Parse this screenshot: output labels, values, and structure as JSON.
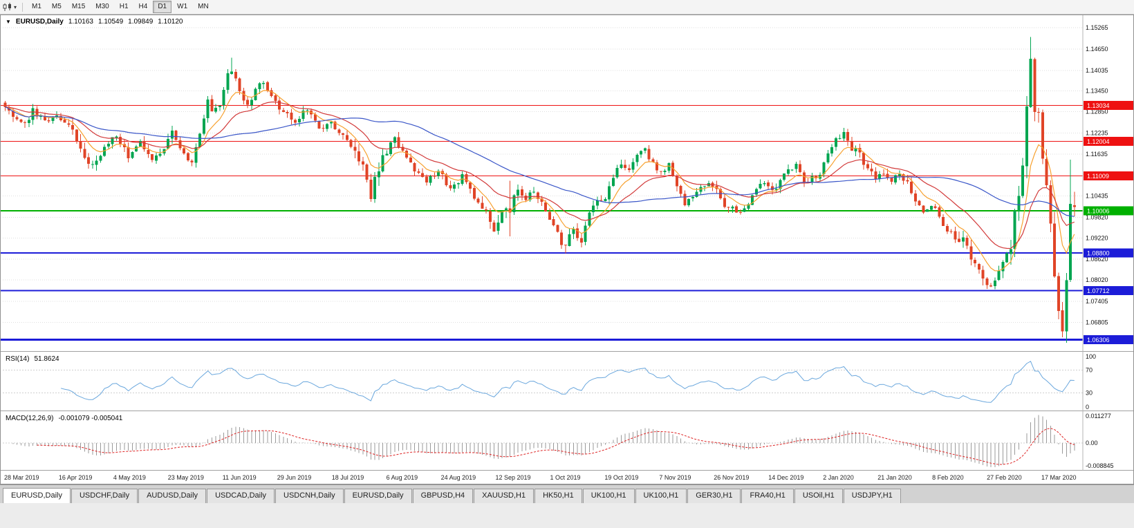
{
  "icons": {
    "collapse_arrow": "▼",
    "dropdown_caret": "▾"
  },
  "toolbar": {
    "timeframes": [
      "M1",
      "M5",
      "M15",
      "M30",
      "H1",
      "H4",
      "D1",
      "W1",
      "MN"
    ],
    "active_timeframe": "D1"
  },
  "chart": {
    "title_symbol": "EURUSD,Daily",
    "ohlc": {
      "open": "1.10163",
      "high": "1.10549",
      "low": "1.09849",
      "close": "1.10120"
    }
  },
  "indicators": {
    "rsi": {
      "label": "RSI(14)",
      "value": "51.8624",
      "scale": [
        "100",
        "70",
        "30",
        "0"
      ],
      "levels": [
        70,
        30
      ]
    },
    "macd": {
      "label": "MACD(12,26,9)",
      "values": "-0.001079 -0.005041",
      "scale": [
        "0.011277",
        "0.00",
        "-0.008845"
      ]
    }
  },
  "price_scale": {
    "labels": [
      "1.15265",
      "1.14650",
      "1.14035",
      "1.13450",
      "1.12850",
      "1.12235",
      "1.11635",
      "1.10435",
      "1.09820",
      "1.09220",
      "1.08620",
      "1.08020",
      "1.07405",
      "1.06805"
    ]
  },
  "x_axis": {
    "dates": [
      "28 Mar 2019",
      "16 Apr 2019",
      "4 May 2019",
      "23 May 2019",
      "11 Jun 2019",
      "29 Jun 2019",
      "18 Jul 2019",
      "6 Aug 2019",
      "24 Aug 2019",
      "12 Sep 2019",
      "1 Oct 2019",
      "19 Oct 2019",
      "7 Nov 2019",
      "26 Nov 2019",
      "14 Dec 2019",
      "2 Jan 2020",
      "21 Jan 2020",
      "8 Feb 2020",
      "27 Feb 2020",
      "17 Mar 2020"
    ]
  },
  "tabs": [
    {
      "label": "EURUSD,Daily",
      "active": true
    },
    {
      "label": "USDCHF,Daily",
      "active": false
    },
    {
      "label": "AUDUSD,Daily",
      "active": false
    },
    {
      "label": "USDCAD,Daily",
      "active": false
    },
    {
      "label": "USDCNH,Daily",
      "active": false
    },
    {
      "label": "EURUSD,Daily",
      "active": false
    },
    {
      "label": "GBPUSD,H4",
      "active": false
    },
    {
      "label": "XAUUSD,H1",
      "active": false
    },
    {
      "label": "HK50,H1",
      "active": false
    },
    {
      "label": "UK100,H1",
      "active": false
    },
    {
      "label": "UK100,H1",
      "active": false
    },
    {
      "label": "GER30,H1",
      "active": false
    },
    {
      "label": "FRA40,H1",
      "active": false
    },
    {
      "label": "USOil,H1",
      "active": false
    },
    {
      "label": "USDJPY,H1",
      "active": false
    }
  ],
  "chart_data": {
    "type": "candlestick",
    "title": "EURUSD,Daily",
    "symbol": "EURUSD",
    "timeframe": "Daily",
    "num_candles": 270,
    "seed": 20200403,
    "price_axis": {
      "min": 1.06,
      "max": 1.156
    },
    "up_color": "#00a550",
    "down_color": "#e04427",
    "levels": [
      {
        "price": 1.13034,
        "label": "1.13034",
        "color": "#ee1111",
        "width": 1
      },
      {
        "price": 1.12004,
        "label": "1.12004",
        "color": "#ee1111",
        "width": 1
      },
      {
        "price": 1.11009,
        "label": "1.11009",
        "color": "#ee1111",
        "width": 1
      },
      {
        "price": 1.10006,
        "label": "1.10006",
        "color": "#00b000",
        "width": 2
      },
      {
        "price": 1.088,
        "label": "1.08800",
        "color": "#1c1cd8",
        "width": 2
      },
      {
        "price": 1.07712,
        "label": "1.07712",
        "color": "#1c1cd8",
        "width": 2
      },
      {
        "price": 1.06306,
        "label": "1.06306",
        "color": "#1c1cd8",
        "width": 3
      }
    ],
    "moving_averages": [
      {
        "type": "ema",
        "period": 8,
        "color": "#f7a12f"
      },
      {
        "type": "ema",
        "period": 21,
        "color": "#d23a3a"
      },
      {
        "type": "sma",
        "period": 50,
        "color": "#3a56c8"
      }
    ],
    "vol_zones": [
      [
        17,
        23,
        1.5
      ],
      [
        88,
        96,
        1.8
      ],
      [
        120,
        130,
        1.5
      ],
      [
        139,
        143,
        1.5
      ],
      [
        239,
        252,
        1.4
      ],
      [
        253,
        268,
        2.4
      ]
    ],
    "anchors": [
      [
        0,
        1.1305
      ],
      [
        2,
        1.1272
      ],
      [
        5,
        1.1248
      ],
      [
        7,
        1.1288
      ],
      [
        10,
        1.1262
      ],
      [
        14,
        1.1268
      ],
      [
        17,
        1.123
      ],
      [
        20,
        1.1152
      ],
      [
        22,
        1.1122
      ],
      [
        25,
        1.1188
      ],
      [
        28,
        1.1215
      ],
      [
        31,
        1.116
      ],
      [
        34,
        1.1205
      ],
      [
        37,
        1.114
      ],
      [
        40,
        1.1178
      ],
      [
        42,
        1.1222
      ],
      [
        45,
        1.116
      ],
      [
        47,
        1.1132
      ],
      [
        49,
        1.123
      ],
      [
        51,
        1.1318
      ],
      [
        52,
        1.1282
      ],
      [
        54,
        1.1308
      ],
      [
        56,
        1.1398
      ],
      [
        57,
        1.1408
      ],
      [
        59,
        1.1338
      ],
      [
        61,
        1.1302
      ],
      [
        63,
        1.1348
      ],
      [
        65,
        1.1372
      ],
      [
        67,
        1.133
      ],
      [
        70,
        1.1282
      ],
      [
        73,
        1.1262
      ],
      [
        76,
        1.1288
      ],
      [
        79,
        1.1238
      ],
      [
        82,
        1.1258
      ],
      [
        85,
        1.1215
      ],
      [
        88,
        1.1168
      ],
      [
        90,
        1.1125
      ],
      [
        92,
        1.1048
      ],
      [
        94,
        1.1118
      ],
      [
        96,
        1.1172
      ],
      [
        98,
        1.1205
      ],
      [
        100,
        1.1172
      ],
      [
        103,
        1.1118
      ],
      [
        106,
        1.1088
      ],
      [
        109,
        1.1112
      ],
      [
        112,
        1.1068
      ],
      [
        115,
        1.1098
      ],
      [
        118,
        1.1042
      ],
      [
        121,
        1.0988
      ],
      [
        123,
        1.0938
      ],
      [
        125,
        1.0988
      ],
      [
        127,
        1.1008
      ],
      [
        129,
        1.1068
      ],
      [
        131,
        1.1028
      ],
      [
        133,
        1.1062
      ],
      [
        135,
        1.1018
      ],
      [
        137,
        1.0968
      ],
      [
        139,
        1.0932
      ],
      [
        141,
        1.0898
      ],
      [
        143,
        1.0942
      ],
      [
        145,
        1.0912
      ],
      [
        147,
        1.0988
      ],
      [
        149,
        1.1032
      ],
      [
        151,
        1.1042
      ],
      [
        153,
        1.1098
      ],
      [
        155,
        1.1142
      ],
      [
        157,
        1.1122
      ],
      [
        159,
        1.1158
      ],
      [
        161,
        1.1172
      ],
      [
        163,
        1.1132
      ],
      [
        165,
        1.1108
      ],
      [
        167,
        1.1138
      ],
      [
        169,
        1.1072
      ],
      [
        171,
        1.1022
      ],
      [
        173,
        1.1048
      ],
      [
        175,
        1.1062
      ],
      [
        177,
        1.1078
      ],
      [
        179,
        1.1058
      ],
      [
        181,
        1.1018
      ],
      [
        183,
        1.1008
      ],
      [
        185,
        1.0988
      ],
      [
        187,
        1.1022
      ],
      [
        189,
        1.1062
      ],
      [
        191,
        1.1078
      ],
      [
        193,
        1.1052
      ],
      [
        195,
        1.1092
      ],
      [
        197,
        1.1112
      ],
      [
        199,
        1.1128
      ],
      [
        201,
        1.1088
      ],
      [
        203,
        1.1092
      ],
      [
        205,
        1.1112
      ],
      [
        207,
        1.1172
      ],
      [
        209,
        1.1208
      ],
      [
        211,
        1.1222
      ],
      [
        213,
        1.1178
      ],
      [
        215,
        1.1162
      ],
      [
        217,
        1.1122
      ],
      [
        219,
        1.1098
      ],
      [
        221,
        1.1108
      ],
      [
        223,
        1.1088
      ],
      [
        225,
        1.1102
      ],
      [
        227,
        1.1088
      ],
      [
        229,
        1.1028
      ],
      [
        231,
        1.1002
      ],
      [
        233,
        1.1022
      ],
      [
        235,
        1.0982
      ],
      [
        237,
        1.0948
      ],
      [
        239,
        1.0928
      ],
      [
        241,
        1.0912
      ],
      [
        243,
        1.0868
      ],
      [
        245,
        1.0832
      ],
      [
        247,
        1.0798
      ],
      [
        249,
        1.0792
      ],
      [
        251,
        1.0852
      ],
      [
        253,
        1.0888
      ],
      [
        254,
        1.0982
      ],
      [
        255,
        1.1052
      ],
      [
        256,
        1.1138
      ],
      [
        257,
        1.1302
      ],
      [
        258,
        1.1432
      ],
      [
        259,
        1.1305
      ],
      [
        260,
        1.1272
      ],
      [
        261,
        1.1142
      ],
      [
        262,
        1.1062
      ],
      [
        263,
        1.0952
      ],
      [
        264,
        1.0822
      ],
      [
        265,
        1.0702
      ],
      [
        266,
        1.0668
      ],
      [
        267,
        1.0792
      ],
      [
        268,
        1.104
      ],
      [
        269,
        1.1012
      ]
    ],
    "forced": {
      "57": {
        "h": 1.144
      },
      "92": {
        "l": 1.1026
      },
      "127": {
        "h": 1.1087,
        "l": 1.0927
      },
      "141": {
        "l": 1.0879
      },
      "211": {
        "h": 1.1239
      },
      "258": {
        "h": 1.15
      },
      "266": {
        "l": 1.0638
      },
      "268": {
        "h": 1.1147
      },
      "269": {
        "o": 1.10163,
        "h": 1.10549,
        "l": 1.09849,
        "c": 1.1012
      }
    }
  }
}
